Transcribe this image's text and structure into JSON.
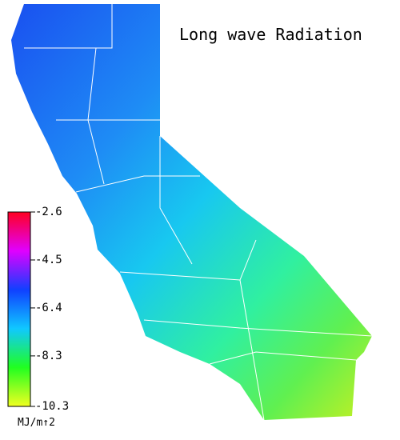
{
  "map": {
    "title": "Long wave Radiation",
    "colorbar": {
      "lim": [
        -2.6,
        -10.3
      ],
      "ticks": [
        -2.6,
        -4.5,
        -6.4,
        -8.3,
        -10.3
      ],
      "colors": [
        "#ff0020",
        "#e000ff",
        "#1040ff",
        "#10c8ff",
        "#20ff20",
        "#f0ff20"
      ],
      "unit": "MJ/m↑2"
    }
  }
}
